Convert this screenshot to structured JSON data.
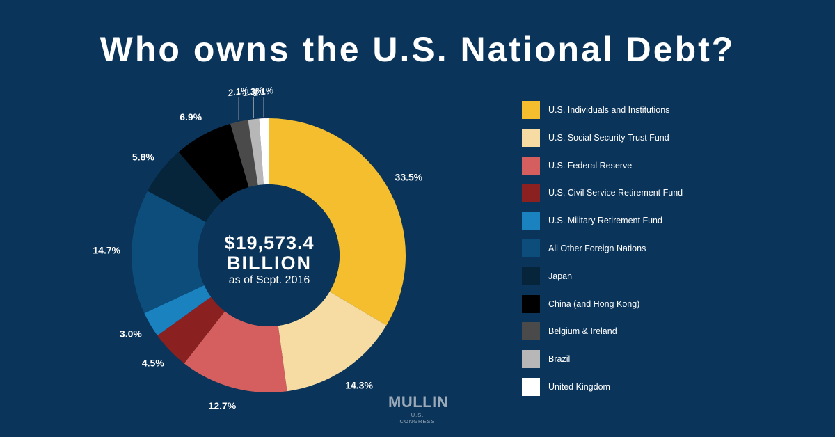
{
  "page": {
    "title": "Who owns the U.S. National Debt?"
  },
  "center": {
    "amount": "$19,573.4",
    "unit": "BILLION",
    "date": "as of Sept. 2016"
  },
  "logo": {
    "name": "MULLIN",
    "subtitle": "U.S. CONGRESS"
  },
  "colors": {
    "background": "#0a3459",
    "hole": "#0a3459"
  },
  "chart_data": {
    "type": "pie",
    "title": "Who owns the U.S. National Debt?",
    "variant": "donut",
    "total_label": "$19,573.4 BILLION",
    "categories": [
      "U.S. Individuals and Institutions",
      "U.S. Social Security Trust Fund",
      "U.S. Federal Reserve",
      "U.S. Civil Service Retirement Fund",
      "U.S. Military Retirement Fund",
      "All Other Foreign Nations",
      "Japan",
      "China (and Hong Kong)",
      "Belgium & Ireland",
      "Brazil",
      "United Kingdom"
    ],
    "values": [
      33.5,
      14.3,
      12.7,
      4.5,
      3.0,
      14.7,
      5.8,
      6.9,
      2.1,
      1.3,
      1.1
    ],
    "value_labels": [
      "33.5%",
      "14.3%",
      "12.7%",
      "4.5%",
      "3.0%",
      "14.7%",
      "5.8%",
      "6.9%",
      "2.1%",
      "1.3%",
      "1.1%"
    ],
    "colors": [
      "#f4be2e",
      "#f6dca3",
      "#d55f5f",
      "#8a2120",
      "#1b82c0",
      "#0c4d7b",
      "#06243a",
      "#000000",
      "#4a4a4a",
      "#b7b7b7",
      "#ffffff"
    ],
    "legend_position": "right"
  }
}
